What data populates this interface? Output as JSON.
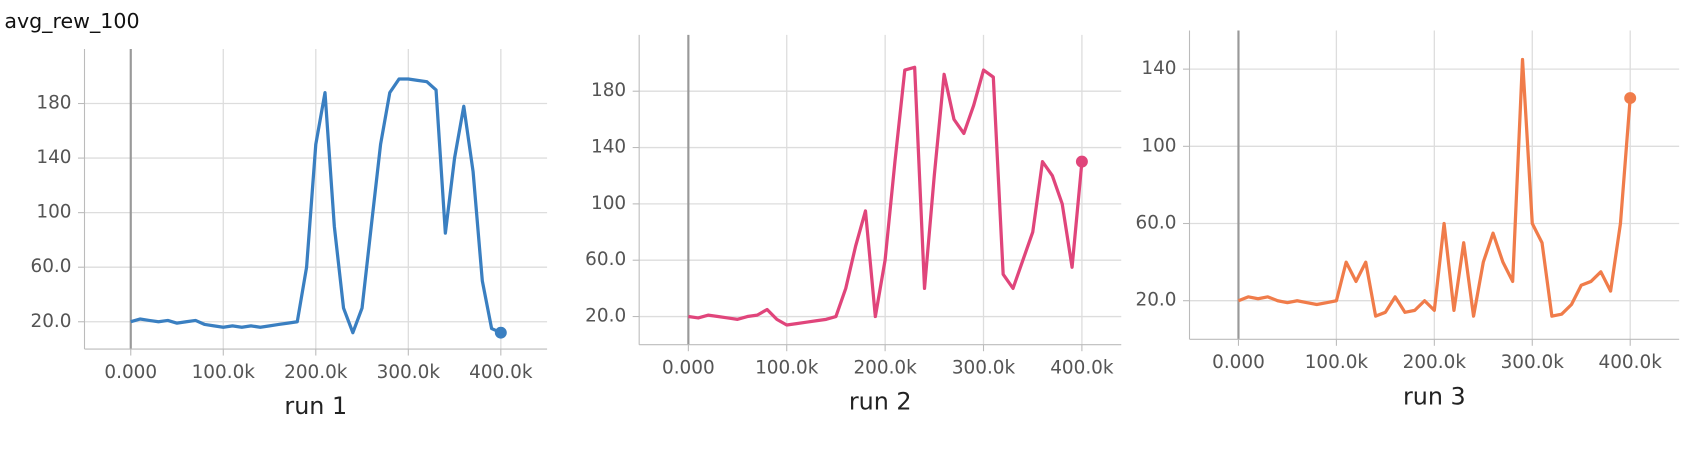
{
  "title": "avg_rew_100",
  "chart_data": [
    {
      "type": "line",
      "title": "run 1",
      "x": [
        0,
        10000,
        20000,
        30000,
        40000,
        50000,
        60000,
        70000,
        80000,
        90000,
        100000,
        110000,
        120000,
        130000,
        140000,
        150000,
        160000,
        170000,
        180000,
        190000,
        200000,
        210000,
        220000,
        230000,
        240000,
        250000,
        260000,
        270000,
        280000,
        290000,
        300000,
        310000,
        320000,
        330000,
        340000,
        350000,
        360000,
        370000,
        380000,
        390000,
        400000
      ],
      "series": [
        {
          "color": "#3a7fc1",
          "values": [
            20,
            22,
            21,
            20,
            21,
            19,
            20,
            21,
            18,
            17,
            16,
            17,
            16,
            17,
            16,
            17,
            18,
            19,
            20,
            60,
            150,
            188,
            90,
            30,
            12,
            30,
            90,
            150,
            188,
            198,
            198,
            197,
            196,
            190,
            85,
            140,
            178,
            130,
            50,
            15,
            12
          ]
        }
      ],
      "xlim": [
        -50000,
        450000
      ],
      "xticks": [
        {
          "value": 0,
          "label": "0.000"
        },
        {
          "value": 100000,
          "label": "100.0k"
        },
        {
          "value": 200000,
          "label": "200.0k"
        },
        {
          "value": 300000,
          "label": "300.0k"
        },
        {
          "value": 400000,
          "label": "400.0k"
        }
      ],
      "ylim": [
        0,
        220
      ],
      "yticks": [
        {
          "value": 20,
          "label": "20.0"
        },
        {
          "value": 60,
          "label": "60.0"
        },
        100,
        140,
        180
      ],
      "grid": true
    },
    {
      "type": "line",
      "title": "run 2",
      "x": [
        0,
        10000,
        20000,
        30000,
        40000,
        50000,
        60000,
        70000,
        80000,
        90000,
        100000,
        110000,
        120000,
        130000,
        140000,
        150000,
        160000,
        170000,
        180000,
        190000,
        200000,
        210000,
        220000,
        230000,
        240000,
        250000,
        260000,
        270000,
        280000,
        290000,
        300000,
        310000,
        320000,
        330000,
        340000,
        350000,
        360000,
        370000,
        380000,
        390000,
        400000
      ],
      "series": [
        {
          "color": "#e0457b",
          "values": [
            20,
            19,
            21,
            20,
            19,
            18,
            20,
            21,
            25,
            18,
            14,
            15,
            16,
            17,
            18,
            20,
            40,
            70,
            95,
            20,
            60,
            130,
            195,
            197,
            40,
            120,
            192,
            160,
            150,
            170,
            195,
            190,
            50,
            40,
            60,
            80,
            130,
            120,
            100,
            55,
            130
          ]
        }
      ],
      "xlim": [
        -50000,
        440000
      ],
      "xticks": [
        {
          "value": 0,
          "label": "0.000"
        },
        {
          "value": 100000,
          "label": "100.0k"
        },
        {
          "value": 200000,
          "label": "200.0k"
        },
        {
          "value": 300000,
          "label": "300.0k"
        },
        {
          "value": 400000,
          "label": "400.0k"
        }
      ],
      "ylim": [
        0,
        220
      ],
      "yticks": [
        {
          "value": 20,
          "label": "20.0"
        },
        {
          "value": 60,
          "label": "60.0"
        },
        100,
        140,
        180
      ],
      "grid": true
    },
    {
      "type": "line",
      "title": "run 3",
      "x": [
        0,
        10000,
        20000,
        30000,
        40000,
        50000,
        60000,
        70000,
        80000,
        90000,
        100000,
        110000,
        120000,
        130000,
        140000,
        150000,
        160000,
        170000,
        180000,
        190000,
        200000,
        210000,
        220000,
        230000,
        240000,
        250000,
        260000,
        270000,
        280000,
        290000,
        300000,
        310000,
        320000,
        330000,
        340000,
        350000,
        360000,
        370000,
        380000,
        390000,
        400000
      ],
      "series": [
        {
          "color": "#f07c4a",
          "values": [
            20,
            22,
            21,
            22,
            20,
            19,
            20,
            19,
            18,
            19,
            20,
            40,
            30,
            40,
            12,
            14,
            22,
            14,
            15,
            20,
            15,
            60,
            15,
            50,
            12,
            40,
            55,
            40,
            30,
            145,
            60,
            50,
            12,
            13,
            18,
            28,
            30,
            35,
            25,
            60,
            125
          ]
        }
      ],
      "xlim": [
        -50000,
        450000
      ],
      "xticks": [
        {
          "value": 0,
          "label": "0.000"
        },
        {
          "value": 100000,
          "label": "100.0k"
        },
        {
          "value": 200000,
          "label": "200.0k"
        },
        {
          "value": 300000,
          "label": "300.0k"
        },
        {
          "value": 400000,
          "label": "400.0k"
        }
      ],
      "ylim": [
        0,
        160
      ],
      "yticks": [
        {
          "value": 20,
          "label": "20.0"
        },
        {
          "value": 60,
          "label": "60.0"
        },
        100,
        140
      ],
      "grid": true
    }
  ]
}
